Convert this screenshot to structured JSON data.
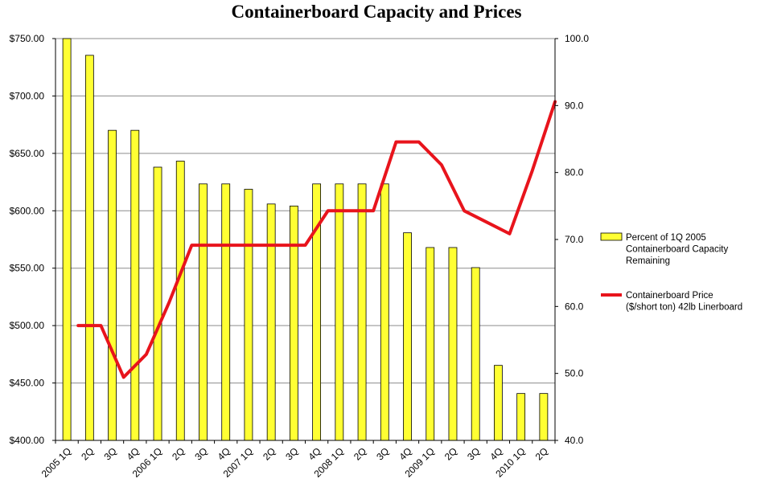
{
  "chart_data": {
    "type": "bar+line",
    "title": "Containerboard Capacity and Prices",
    "categories": [
      "2005 1Q",
      "2Q",
      "3Q",
      "4Q",
      "2006 1Q",
      "2Q",
      "3Q",
      "4Q",
      "2007 1Q",
      "2Q",
      "3Q",
      "4Q",
      "2008 1Q",
      "2Q",
      "3Q",
      "4Q",
      "2009 1Q",
      "2Q",
      "3Q",
      "4Q",
      "2010 1Q",
      "2Q"
    ],
    "left_axis": {
      "ylim": [
        400,
        750
      ],
      "ticks": [
        "$400.00",
        "$450.00",
        "$500.00",
        "$550.00",
        "$600.00",
        "$650.00",
        "$700.00",
        "$750.00"
      ]
    },
    "right_axis": {
      "ylim": [
        40,
        100
      ],
      "ticks": [
        "40.0",
        "50.0",
        "60.0",
        "70.0",
        "80.0",
        "90.0",
        "100.0"
      ]
    },
    "grid": true,
    "legend_position": "right",
    "series": [
      {
        "name_lines": [
          "Percent of 1Q 2005",
          "Containerboard Capacity",
          "Remaining"
        ],
        "type": "bar",
        "axis": "right",
        "color": "#ffff33",
        "values": [
          100.0,
          97.5,
          86.3,
          86.3,
          80.8,
          81.7,
          78.3,
          78.3,
          77.5,
          75.3,
          75.0,
          78.3,
          78.3,
          78.3,
          78.3,
          71.0,
          68.8,
          68.8,
          65.8,
          51.2,
          47.0,
          47.0
        ]
      },
      {
        "name_lines": [
          "Containerboard Price",
          "($/short ton) 42lb Linerboard"
        ],
        "type": "line",
        "axis": "left",
        "color": "#e8141c",
        "values": [
          500,
          500,
          455,
          475,
          520,
          570,
          570,
          570,
          570,
          570,
          570,
          600,
          600,
          600,
          660,
          660,
          640,
          600,
          590,
          580,
          635,
          695
        ]
      }
    ]
  }
}
